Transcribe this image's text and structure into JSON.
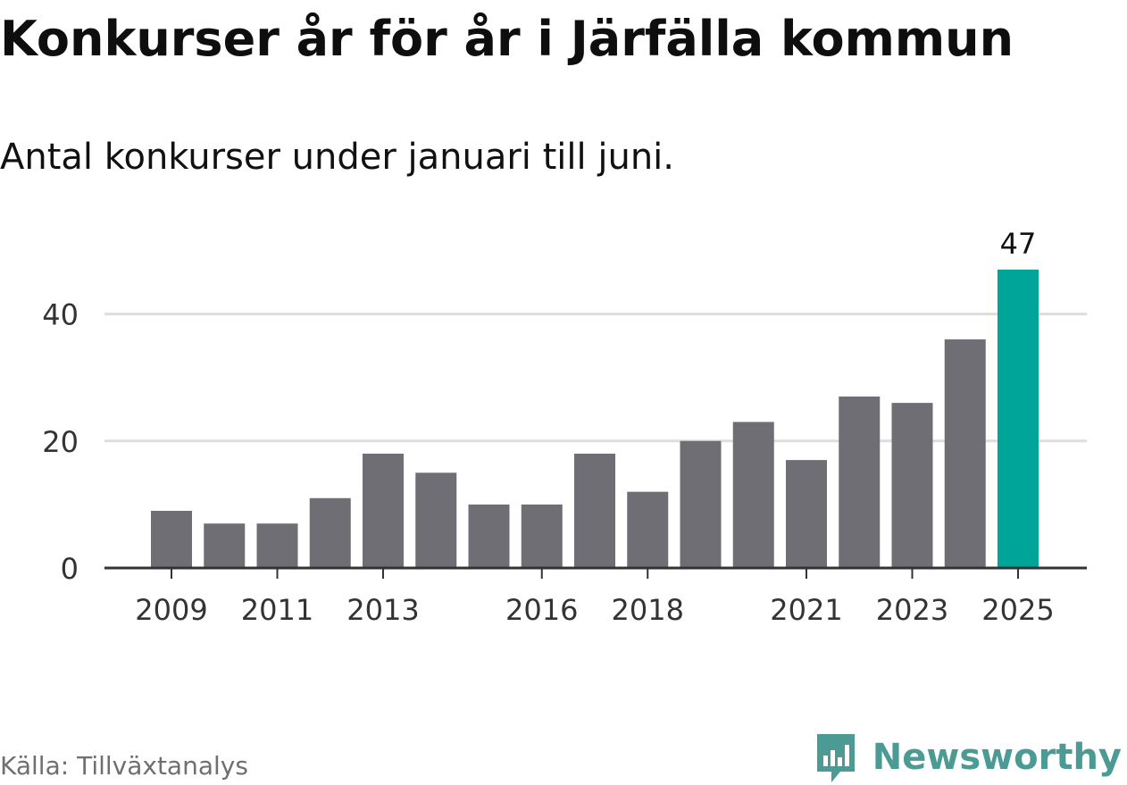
{
  "header": {
    "title": "Konkurser år för år i Järfälla kommun",
    "subtitle": "Antal konkurser under januari till juni."
  },
  "footer": {
    "source": "Källa: Tillväxtanalys",
    "brand": "Newsworthy"
  },
  "colors": {
    "bar": "#6f6e75",
    "highlight": "#00a59a",
    "grid": "#dddddd",
    "axis": "#333333",
    "brand": "#4c9a94"
  },
  "chart_data": {
    "type": "bar",
    "categories": [
      "2009",
      "2010",
      "2011",
      "2012",
      "2013",
      "2014",
      "2015",
      "2016",
      "2017",
      "2018",
      "2019",
      "2020",
      "2021",
      "2022",
      "2023",
      "2024",
      "2025"
    ],
    "values": [
      9,
      7,
      7,
      11,
      18,
      15,
      10,
      10,
      18,
      12,
      20,
      23,
      17,
      27,
      26,
      36,
      47
    ],
    "x_tick_labels": [
      "2009",
      "2011",
      "2013",
      "2016",
      "2018",
      "2021",
      "2023",
      "2025"
    ],
    "y_ticks": [
      0,
      20,
      40
    ],
    "ylim": [
      0,
      47
    ],
    "highlight_category": "2025",
    "data_labels": [
      {
        "category": "2025",
        "text": "47"
      }
    ],
    "grid": true,
    "legend": "none"
  }
}
